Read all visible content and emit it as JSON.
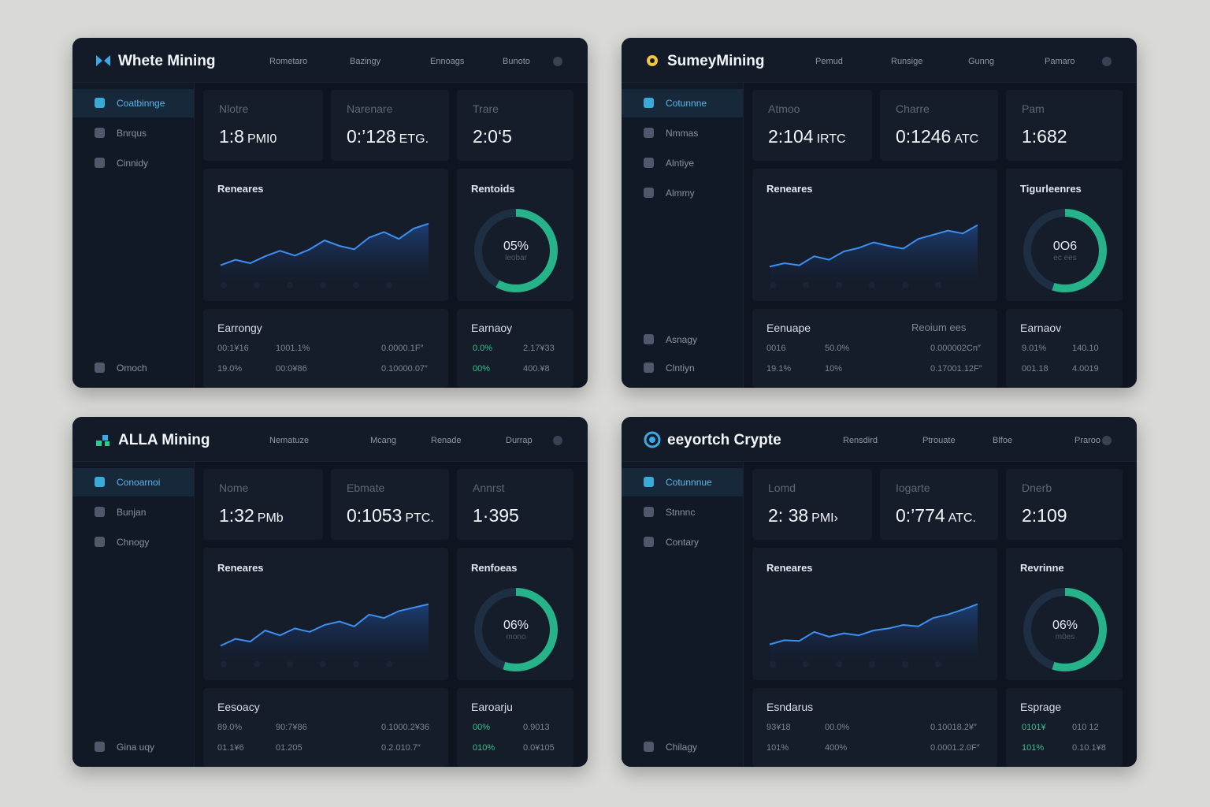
{
  "panels": [
    {
      "title": "Whete Mining",
      "logo_icon": "butterfly-logo-icon",
      "accent": "#3aa9e6",
      "nav": [
        "Rometaro",
        "Bazingy",
        "Ennoags",
        "Bunoto"
      ],
      "sidebar_items": [
        "Coatbinnge",
        "Bnrqus",
        "Cinnidy"
      ],
      "sidebar_bottom": [
        "Omoch"
      ],
      "stats": [
        {
          "label": "Nlotre",
          "value": "1:8",
          "unit": "PMI0"
        },
        {
          "label": "Narenare",
          "value": "0:’128",
          "unit": "ETG."
        },
        {
          "label": "Trare",
          "value": "2:0‘5",
          "unit": ""
        }
      ],
      "chart_title": "Reneares",
      "chart_values": [
        22,
        30,
        25,
        35,
        43,
        36,
        45,
        58,
        50,
        45,
        62,
        70,
        60,
        75,
        82
      ],
      "donut_title": "Rentoids",
      "donut_value": "05%",
      "donut_sub": "leobar",
      "donut_fraction": 0.58,
      "earn_title": "Earrongy",
      "earn_title2": "",
      "earn_rows": [
        [
          "00:1¥16",
          "1001.1%",
          "0.0000.1F″"
        ],
        [
          "19.0%",
          "00:0¥86",
          "0.10000.07″"
        ]
      ],
      "earn2_title": "Earnaoy",
      "earn2_rows": [
        [
          "0.0%",
          "2.17¥33"
        ],
        [
          "00%",
          "400.¥8"
        ]
      ]
    },
    {
      "title": "SumeyMining",
      "logo_icon": "gear-logo-icon",
      "accent": "#f2c440",
      "nav": [
        "Pemud",
        "Runsige",
        "Gunng",
        "Pamaro"
      ],
      "sidebar_items": [
        "Cotunnne",
        "Nmmas",
        "Alntiye",
        "Almmy"
      ],
      "sidebar_bottom": [
        "Asnagy",
        "Clntiyn"
      ],
      "stats": [
        {
          "label": "Atmoo",
          "value": "2:104",
          "unit": "IRTC"
        },
        {
          "label": "Charre",
          "value": "0:1246",
          "unit": "ATC"
        },
        {
          "label": "Pam",
          "value": "1:682",
          "unit": ""
        }
      ],
      "chart_title": "Reneares",
      "chart_values": [
        20,
        25,
        22,
        35,
        30,
        42,
        47,
        55,
        50,
        46,
        60,
        66,
        72,
        68,
        80
      ],
      "donut_title": "Tigurleenres",
      "donut_value": "0O6",
      "donut_sub": "ec ees",
      "donut_fraction": 0.55,
      "earn_title": "Eenuape",
      "earn_title2": "Reoium ees",
      "earn_rows": [
        [
          "0016",
          "50.0%",
          "0.000002Cn″"
        ],
        [
          "19.1%",
          "10%",
          "0.17001.12F″"
        ]
      ],
      "earn2_title": "Earnaov",
      "earn2_rows": [
        [
          "9.01%",
          "140.10"
        ],
        [
          "001.18",
          "4.0019"
        ]
      ]
    },
    {
      "title": "ALLA Mining",
      "logo_icon": "blocks-logo-icon",
      "accent": "#2ecc8a",
      "nav": [
        "Nematuze",
        "Mcang",
        "Renade",
        "Durrap"
      ],
      "sidebar_items": [
        "Conoarnoi",
        "Bunjan",
        "Chnogy"
      ],
      "sidebar_bottom": [
        "Gina uqy"
      ],
      "stats": [
        {
          "label": "Nome",
          "value": "1:32",
          "unit": "PMb"
        },
        {
          "label": "Ebmate",
          "value": "0:1053",
          "unit": "PTC."
        },
        {
          "label": "Annrst",
          "value": "1·395",
          "unit": ""
        }
      ],
      "chart_title": "Reneares",
      "chart_values": [
        20,
        30,
        26,
        42,
        35,
        45,
        40,
        50,
        55,
        48,
        65,
        60,
        70,
        75,
        80
      ],
      "donut_title": "Renfoeas",
      "donut_value": "06%",
      "donut_sub": "mono",
      "donut_fraction": 0.55,
      "earn_title": "Eesoacy",
      "earn_title2": "",
      "earn_rows": [
        [
          "89.0%",
          "90:7¥86",
          "0.1000.2¥36"
        ],
        [
          "01.1¥6",
          "01.205",
          "0.2.010.7″"
        ]
      ],
      "earn2_title": "Earoarju",
      "earn2_rows": [
        [
          "00%",
          "0.9013"
        ],
        [
          "010%",
          "0.0¥105"
        ]
      ]
    },
    {
      "title": "eeyortch Crypte",
      "logo_icon": "circle-logo-icon",
      "accent": "#3aa9e6",
      "nav": [
        "Rensdird",
        "Ptrouate",
        "Blfoe",
        "Praroo"
      ],
      "sidebar_items": [
        "Cotunnnue",
        "Stnnnc",
        "Contary"
      ],
      "sidebar_bottom": [
        "Chilagy"
      ],
      "stats": [
        {
          "label": "Lomd",
          "value": "2: 38",
          "unit": "PMI›"
        },
        {
          "label": "Iogarte",
          "value": "0:’774",
          "unit": "ATC."
        },
        {
          "label": "Dnerb",
          "value": "2:109",
          "unit": ""
        }
      ],
      "chart_title": "Reneares",
      "chart_values": [
        22,
        28,
        27,
        40,
        33,
        38,
        35,
        42,
        45,
        50,
        48,
        60,
        65,
        72,
        80
      ],
      "donut_title": "Revrinne",
      "donut_value": "06%",
      "donut_sub": "m0es",
      "donut_fraction": 0.55,
      "earn_title": "Esndarus",
      "earn_title2": "",
      "earn_rows": [
        [
          "93¥18",
          "00.0%",
          "0.10018.2¥″"
        ],
        [
          "101%",
          "400%",
          "0.0001.2.0F″"
        ]
      ],
      "earn2_title": "Esprage",
      "earn2_rows": [
        [
          "0101¥",
          "010 12"
        ],
        [
          "101%",
          "0.10.1¥8"
        ]
      ]
    }
  ]
}
